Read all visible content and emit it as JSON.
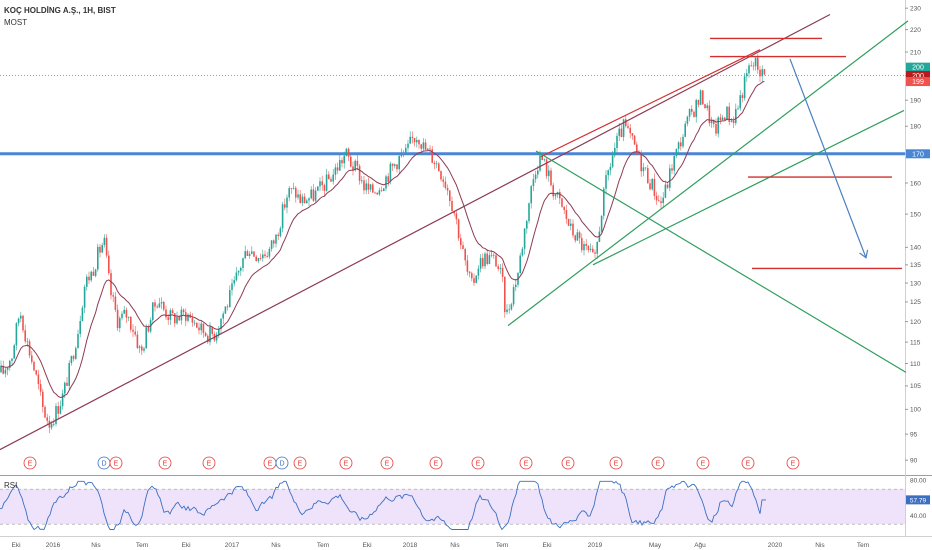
{
  "header": {
    "title": "KOÇ HOLDİNG A.Ş., 1H, BIST",
    "indicator": "MOST"
  },
  "rsi_label": "RSI",
  "colors": {
    "up": "#26a69a",
    "down": "#ef5350",
    "most": "#8e3b52",
    "horizontal": "#4a86d4",
    "trend_green": "#2e9e5b",
    "red_line": "#d32f2f",
    "arrow": "#4a7fc1",
    "rsi_line": "#3b6fc2",
    "rsi_fill": "#eee3fb"
  },
  "price_badges": [
    {
      "label": "200",
      "color": "#26a69a",
      "price": 203.5
    },
    {
      "label": "200",
      "color": "#b71c1c",
      "price": 200
    },
    {
      "label": "199",
      "color": "#ef5350",
      "price": 197.5
    },
    {
      "label": "170",
      "color": "#4a86d4",
      "price": 170
    }
  ],
  "rsi_badge": {
    "label": "57.79",
    "color": "#3b6fc2"
  },
  "earnings_markers": [
    {
      "label": "E",
      "x": 30
    },
    {
      "label": "D",
      "x": 104
    },
    {
      "label": "E",
      "x": 116
    },
    {
      "label": "E",
      "x": 165
    },
    {
      "label": "E",
      "x": 209
    },
    {
      "label": "E",
      "x": 270
    },
    {
      "label": "D",
      "x": 282
    },
    {
      "label": "E",
      "x": 300
    },
    {
      "label": "E",
      "x": 346
    },
    {
      "label": "E",
      "x": 387
    },
    {
      "label": "E",
      "x": 436
    },
    {
      "label": "E",
      "x": 478
    },
    {
      "label": "E",
      "x": 526
    },
    {
      "label": "E",
      "x": 568
    },
    {
      "label": "E",
      "x": 616
    },
    {
      "label": "E",
      "x": 658
    },
    {
      "label": "E",
      "x": 703
    },
    {
      "label": "E",
      "x": 748
    },
    {
      "label": "E",
      "x": 793
    }
  ],
  "chart_data": {
    "type": "candlestick",
    "title": "KOÇ HOLDİNG A.Ş., 1H, BIST",
    "price_axis": {
      "ticks": [
        230,
        220,
        210,
        200,
        190,
        180,
        170,
        160,
        150,
        140,
        135,
        130,
        125,
        120,
        115,
        110,
        105,
        100,
        95,
        90
      ],
      "scale": "log",
      "range": [
        88,
        232
      ]
    },
    "time_axis": {
      "labels": [
        "Eki",
        "2016",
        "Nis",
        "Tem",
        "Eki",
        "2017",
        "Nis",
        "Tem",
        "Eki",
        "2018",
        "Nis",
        "Tem",
        "Eki",
        "2019",
        "May",
        "Ağu",
        "2020",
        "Nis",
        "Tem"
      ]
    },
    "rsi_axis": {
      "ticks": [
        "80.00",
        "40.00"
      ],
      "range": [
        20,
        85
      ],
      "bands": [
        70,
        30
      ],
      "last": 57.79
    },
    "price_path": [
      [
        3,
        108
      ],
      [
        12,
        112
      ],
      [
        20,
        123
      ],
      [
        27,
        115
      ],
      [
        35,
        108
      ],
      [
        43,
        100
      ],
      [
        50,
        97
      ],
      [
        57,
        100
      ],
      [
        63,
        103
      ],
      [
        70,
        109
      ],
      [
        78,
        118
      ],
      [
        85,
        130
      ],
      [
        92,
        133
      ],
      [
        98,
        138
      ],
      [
        104,
        142
      ],
      [
        110,
        128
      ],
      [
        118,
        120
      ],
      [
        126,
        122
      ],
      [
        134,
        118
      ],
      [
        141,
        112
      ],
      [
        147,
        118
      ],
      [
        153,
        123
      ],
      [
        158,
        126
      ],
      [
        164,
        123
      ],
      [
        171,
        121
      ],
      [
        178,
        121
      ],
      [
        186,
        122
      ],
      [
        194,
        120
      ],
      [
        201,
        118
      ],
      [
        208,
        117
      ],
      [
        215,
        117
      ],
      [
        221,
        121
      ],
      [
        228,
        125
      ],
      [
        235,
        130
      ],
      [
        242,
        136
      ],
      [
        248,
        140
      ],
      [
        255,
        138
      ],
      [
        262,
        138
      ],
      [
        269,
        139
      ],
      [
        276,
        143
      ],
      [
        282,
        150
      ],
      [
        288,
        157
      ],
      [
        295,
        157
      ],
      [
        301,
        154
      ],
      [
        308,
        155
      ],
      [
        314,
        156
      ],
      [
        320,
        158
      ],
      [
        326,
        160
      ],
      [
        333,
        163
      ],
      [
        340,
        167
      ],
      [
        346,
        170
      ],
      [
        352,
        166
      ],
      [
        358,
        164
      ],
      [
        364,
        159
      ],
      [
        370,
        157
      ],
      [
        376,
        158
      ],
      [
        382,
        160
      ],
      [
        388,
        163
      ],
      [
        394,
        166
      ],
      [
        400,
        169
      ],
      [
        406,
        170
      ],
      [
        412,
        175
      ],
      [
        418,
        177
      ],
      [
        424,
        172
      ],
      [
        430,
        170
      ],
      [
        436,
        167
      ],
      [
        442,
        163
      ],
      [
        448,
        158
      ],
      [
        455,
        150
      ],
      [
        461,
        141
      ],
      [
        467,
        133
      ],
      [
        472,
        129
      ],
      [
        478,
        135
      ],
      [
        484,
        137
      ],
      [
        490,
        137
      ],
      [
        496,
        136
      ],
      [
        502,
        131
      ],
      [
        506,
        121
      ],
      [
        512,
        127
      ],
      [
        518,
        133
      ],
      [
        524,
        144
      ],
      [
        530,
        156
      ],
      [
        536,
        166
      ],
      [
        541,
        169
      ],
      [
        547,
        164
      ],
      [
        553,
        158
      ],
      [
        559,
        154
      ],
      [
        565,
        150
      ],
      [
        571,
        145
      ],
      [
        577,
        143
      ],
      [
        583,
        140
      ],
      [
        589,
        138
      ],
      [
        595,
        136
      ],
      [
        601,
        150
      ],
      [
        607,
        162
      ],
      [
        613,
        170
      ],
      [
        619,
        176
      ],
      [
        624,
        180
      ],
      [
        630,
        176
      ],
      [
        636,
        171
      ],
      [
        642,
        166
      ],
      [
        648,
        162
      ],
      [
        654,
        158
      ],
      [
        660,
        153
      ],
      [
        666,
        158
      ],
      [
        672,
        166
      ],
      [
        678,
        172
      ],
      [
        684,
        178
      ],
      [
        690,
        184
      ],
      [
        696,
        188
      ],
      [
        702,
        192
      ],
      [
        708,
        185
      ],
      [
        714,
        178
      ],
      [
        720,
        182
      ],
      [
        726,
        186
      ],
      [
        732,
        182
      ],
      [
        738,
        188
      ],
      [
        744,
        196
      ],
      [
        750,
        204
      ],
      [
        756,
        205
      ],
      [
        762,
        201
      ],
      [
        766,
        199
      ]
    ],
    "most_overlay": "trailing stop line plotted over the candles",
    "drawings": [
      {
        "kind": "trendline",
        "color": "red_line",
        "from": [
          541,
          169
        ],
        "to": [
          760,
          211
        ]
      },
      {
        "kind": "trendline",
        "color": "most",
        "from": [
          0,
          92
        ],
        "to": [
          830,
          227
        ]
      },
      {
        "kind": "trendline",
        "color": "trend_green",
        "from": [
          508,
          119
        ],
        "to": [
          908,
          224
        ]
      },
      {
        "kind": "trendline",
        "color": "trend_green",
        "from": [
          593,
          135
        ],
        "to": [
          904,
          186
        ]
      },
      {
        "kind": "trendline",
        "color": "trend_green",
        "from": [
          536,
          171
        ],
        "to": [
          906,
          108
        ]
      },
      {
        "kind": "horizontal",
        "color": "horizontal",
        "price": 170
      },
      {
        "kind": "segment",
        "color": "red_line",
        "from": [
          710,
          216
        ],
        "to": [
          822,
          216
        ]
      },
      {
        "kind": "segment",
        "color": "red_line",
        "from": [
          710,
          208
        ],
        "to": [
          846,
          208
        ]
      },
      {
        "kind": "segment",
        "color": "red_line",
        "from": [
          748,
          162
        ],
        "to": [
          892,
          162
        ]
      },
      {
        "kind": "segment",
        "color": "red_line",
        "from": [
          752,
          134
        ],
        "to": [
          902,
          134
        ]
      },
      {
        "kind": "arrow",
        "color": "arrow",
        "from": [
          790,
          207
        ],
        "to": [
          866,
          137
        ]
      }
    ]
  }
}
